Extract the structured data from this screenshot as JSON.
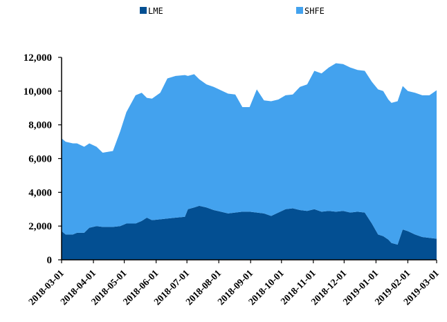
{
  "chart_data": {
    "type": "area",
    "stacked": true,
    "title": "",
    "xlabel": "",
    "ylabel": "",
    "ylim": [
      0,
      12000
    ],
    "y_ticks": [
      0,
      2000,
      4000,
      6000,
      8000,
      10000,
      12000
    ],
    "y_tick_labels": [
      "0",
      "2,000",
      "4,000",
      "6,000",
      "8,000",
      "10,000",
      "12,000"
    ],
    "x_range": [
      "2018-03-01",
      "2019-03-01"
    ],
    "x_tick_labels": [
      "2018-03-01",
      "2018-04-01",
      "2018-05-01",
      "2018-06-01",
      "2018-07-01",
      "2018-08-01",
      "2018-09-01",
      "2018-10-01",
      "2018-11-01",
      "2018-12-01",
      "2019-01-01",
      "2019-02-01",
      "2019-03-01"
    ],
    "grid": false,
    "legend_position": "top",
    "series": [
      {
        "name": "LME",
        "color": "#034f92",
        "points": [
          [
            "2018-03-01",
            1700
          ],
          [
            "2018-03-05",
            1500
          ],
          [
            "2018-03-12",
            1500
          ],
          [
            "2018-03-16",
            1600
          ],
          [
            "2018-03-23",
            1600
          ],
          [
            "2018-03-28",
            1900
          ],
          [
            "2018-04-04",
            2000
          ],
          [
            "2018-04-10",
            1950
          ],
          [
            "2018-04-20",
            1950
          ],
          [
            "2018-04-27",
            2000
          ],
          [
            "2018-05-03",
            2150
          ],
          [
            "2018-05-12",
            2150
          ],
          [
            "2018-05-18",
            2300
          ],
          [
            "2018-05-23",
            2500
          ],
          [
            "2018-05-28",
            2350
          ],
          [
            "2018-06-05",
            2400
          ],
          [
            "2018-06-12",
            2450
          ],
          [
            "2018-06-20",
            2500
          ],
          [
            "2018-06-29",
            2550
          ],
          [
            "2018-07-02",
            3000
          ],
          [
            "2018-07-08",
            3100
          ],
          [
            "2018-07-13",
            3200
          ],
          [
            "2018-07-20",
            3100
          ],
          [
            "2018-07-27",
            2950
          ],
          [
            "2018-08-03",
            2850
          ],
          [
            "2018-08-10",
            2750
          ],
          [
            "2018-08-17",
            2800
          ],
          [
            "2018-08-24",
            2850
          ],
          [
            "2018-08-31",
            2850
          ],
          [
            "2018-09-07",
            2800
          ],
          [
            "2018-09-14",
            2750
          ],
          [
            "2018-09-21",
            2600
          ],
          [
            "2018-09-28",
            2800
          ],
          [
            "2018-10-05",
            3000
          ],
          [
            "2018-10-12",
            3050
          ],
          [
            "2018-10-19",
            2950
          ],
          [
            "2018-10-26",
            2900
          ],
          [
            "2018-11-02",
            3000
          ],
          [
            "2018-11-09",
            2850
          ],
          [
            "2018-11-16",
            2900
          ],
          [
            "2018-11-23",
            2850
          ],
          [
            "2018-11-30",
            2900
          ],
          [
            "2018-12-07",
            2800
          ],
          [
            "2018-12-14",
            2850
          ],
          [
            "2018-12-21",
            2800
          ],
          [
            "2018-12-28",
            2150
          ],
          [
            "2019-01-03",
            1500
          ],
          [
            "2019-01-08",
            1400
          ],
          [
            "2019-01-13",
            1200
          ],
          [
            "2019-01-16",
            1000
          ],
          [
            "2019-01-22",
            900
          ],
          [
            "2019-01-27",
            1800
          ],
          [
            "2019-02-01",
            1700
          ],
          [
            "2019-02-08",
            1500
          ],
          [
            "2019-02-15",
            1350
          ],
          [
            "2019-02-22",
            1300
          ],
          [
            "2019-03-01",
            1250
          ]
        ]
      },
      {
        "name": "SHFE",
        "color": "#43a2ee",
        "points": [
          [
            "2018-03-01",
            5500
          ],
          [
            "2018-03-05",
            5500
          ],
          [
            "2018-03-12",
            5400
          ],
          [
            "2018-03-16",
            5300
          ],
          [
            "2018-03-23",
            5100
          ],
          [
            "2018-03-28",
            5000
          ],
          [
            "2018-04-04",
            4700
          ],
          [
            "2018-04-10",
            4400
          ],
          [
            "2018-04-20",
            4500
          ],
          [
            "2018-04-27",
            5600
          ],
          [
            "2018-05-03",
            6600
          ],
          [
            "2018-05-12",
            7600
          ],
          [
            "2018-05-18",
            7600
          ],
          [
            "2018-05-23",
            7100
          ],
          [
            "2018-05-28",
            7200
          ],
          [
            "2018-06-05",
            7500
          ],
          [
            "2018-06-12",
            8300
          ],
          [
            "2018-06-20",
            8400
          ],
          [
            "2018-06-29",
            8400
          ],
          [
            "2018-07-02",
            7900
          ],
          [
            "2018-07-08",
            7900
          ],
          [
            "2018-07-13",
            7500
          ],
          [
            "2018-07-20",
            7300
          ],
          [
            "2018-07-27",
            7300
          ],
          [
            "2018-08-03",
            7200
          ],
          [
            "2018-08-10",
            7100
          ],
          [
            "2018-08-17",
            7000
          ],
          [
            "2018-08-24",
            6200
          ],
          [
            "2018-08-31",
            6200
          ],
          [
            "2018-09-07",
            7300
          ],
          [
            "2018-09-14",
            6700
          ],
          [
            "2018-09-21",
            6800
          ],
          [
            "2018-09-28",
            6700
          ],
          [
            "2018-10-05",
            6750
          ],
          [
            "2018-10-12",
            6750
          ],
          [
            "2018-10-19",
            7300
          ],
          [
            "2018-10-26",
            7500
          ],
          [
            "2018-11-02",
            8200
          ],
          [
            "2018-11-09",
            8200
          ],
          [
            "2018-11-16",
            8500
          ],
          [
            "2018-11-23",
            8800
          ],
          [
            "2018-11-30",
            8700
          ],
          [
            "2018-12-07",
            8600
          ],
          [
            "2018-12-14",
            8400
          ],
          [
            "2018-12-21",
            8400
          ],
          [
            "2018-12-28",
            8400
          ],
          [
            "2019-01-03",
            8600
          ],
          [
            "2019-01-08",
            8600
          ],
          [
            "2019-01-13",
            8300
          ],
          [
            "2019-01-16",
            8300
          ],
          [
            "2019-01-22",
            8500
          ],
          [
            "2019-01-27",
            8500
          ],
          [
            "2019-02-01",
            8300
          ],
          [
            "2019-02-08",
            8400
          ],
          [
            "2019-02-15",
            8400
          ],
          [
            "2019-02-22",
            8450
          ],
          [
            "2019-03-01",
            8800
          ]
        ]
      }
    ]
  }
}
